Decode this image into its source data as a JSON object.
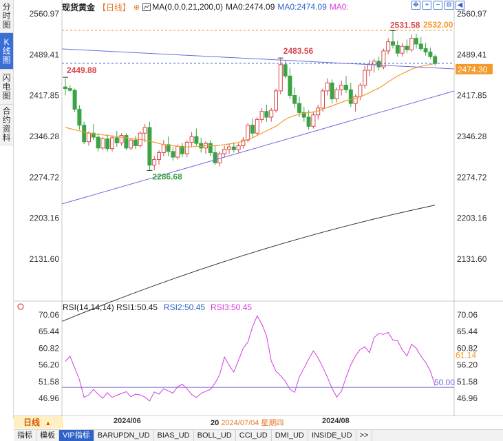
{
  "sidebar": {
    "tabs": [
      {
        "label": "分时图",
        "active": false
      },
      {
        "label": "K线图",
        "active": true
      },
      {
        "label": "闪电图",
        "active": false
      },
      {
        "label": "合约资料",
        "active": false
      }
    ]
  },
  "header": {
    "title": "现货黄金",
    "period_tag": "【日线】",
    "ma_icon": "chart-settings-icon",
    "ma_label": "MA(0,0,0,21,200,0)",
    "ma0_value_1": "MA0:2474.09",
    "ma0_value_2": "MA0:2474.09",
    "ma0_value_3": "MA0:"
  },
  "window_controls": [
    "expand-icon",
    "zoom-in-icon",
    "zoom-out-icon",
    "settings-icon",
    "scroll-left-icon"
  ],
  "rsi_header": {
    "label": "RSI(14,14,14)",
    "rsi1": "RSI1:50.45",
    "rsi2": "RSI2:50.45",
    "rsi3": "RSI3:50.45"
  },
  "bottom": {
    "period_label": "日线",
    "date_1": "2024/06",
    "date_2_prefix": "20",
    "date_selected": "2024/07/04 星期四",
    "date_3": "2024/08"
  },
  "tabbar": [
    "指标",
    "模板",
    "VIP指标",
    "BARUPDN_UD",
    "BIAS_UD",
    "BOLL_UD",
    "CCI_UD",
    "DMI_UD",
    "INSIDE_UD",
    ">>"
  ],
  "colors": {
    "up": "#d8454a",
    "down": "#3aa343",
    "ma21": "#f39a2a",
    "ma200": "#333333",
    "trendline": "#6b6bdc",
    "rsi": "#d33be0",
    "accent": "#2f62c7",
    "current_price": "#f39a2a"
  },
  "chart_data": [
    {
      "type": "candlestick",
      "title": "现货黄金",
      "period": "日线",
      "y_ticks": [
        "2560.97",
        "2489.41",
        "2417.85",
        "2346.28",
        "2274.72",
        "2203.16",
        "2131.60"
      ],
      "ylim": [
        2131.6,
        2560.97
      ],
      "x_ticks": [
        "2024/06",
        "2024/07/04",
        "2024/08"
      ],
      "annotations": {
        "high_1": "2449.88",
        "low_1": "2286.68",
        "high_2": "2483.56",
        "high_3": "2531.58",
        "last_high_marker": "2532.00",
        "current_price": "2474.30"
      },
      "price_levels": {
        "dashed_top": 2532.0,
        "dashed_current": 2474.3
      },
      "candles": [
        [
          2433,
          2448,
          2418,
          2430
        ],
        [
          2430,
          2436,
          2424,
          2427
        ],
        [
          2427,
          2430,
          2389,
          2394
        ],
        [
          2394,
          2401,
          2358,
          2366
        ],
        [
          2366,
          2372,
          2333,
          2337
        ],
        [
          2337,
          2355,
          2330,
          2352
        ],
        [
          2352,
          2368,
          2340,
          2345
        ],
        [
          2345,
          2352,
          2320,
          2326
        ],
        [
          2326,
          2345,
          2322,
          2342
        ],
        [
          2342,
          2350,
          2320,
          2325
        ],
        [
          2325,
          2348,
          2320,
          2344
        ],
        [
          2344,
          2356,
          2328,
          2335
        ],
        [
          2335,
          2352,
          2330,
          2348
        ],
        [
          2348,
          2352,
          2322,
          2326
        ],
        [
          2326,
          2344,
          2322,
          2340
        ],
        [
          2340,
          2347,
          2324,
          2330
        ],
        [
          2330,
          2355,
          2326,
          2352
        ],
        [
          2352,
          2368,
          2336,
          2362
        ],
        [
          2362,
          2372,
          2286,
          2296
        ],
        [
          2296,
          2312,
          2287,
          2306
        ],
        [
          2306,
          2322,
          2297,
          2318
        ],
        [
          2318,
          2340,
          2312,
          2332
        ],
        [
          2332,
          2346,
          2312,
          2320
        ],
        [
          2320,
          2328,
          2304,
          2310
        ],
        [
          2310,
          2332,
          2306,
          2329
        ],
        [
          2329,
          2335,
          2310,
          2316
        ],
        [
          2316,
          2340,
          2310,
          2336
        ],
        [
          2336,
          2354,
          2328,
          2346
        ],
        [
          2346,
          2360,
          2330,
          2334
        ],
        [
          2334,
          2344,
          2318,
          2326
        ],
        [
          2326,
          2338,
          2316,
          2334
        ],
        [
          2334,
          2340,
          2312,
          2318
        ],
        [
          2318,
          2330,
          2296,
          2300
        ],
        [
          2300,
          2320,
          2294,
          2316
        ],
        [
          2316,
          2330,
          2310,
          2324
        ],
        [
          2324,
          2334,
          2316,
          2328
        ],
        [
          2328,
          2336,
          2318,
          2323
        ],
        [
          2323,
          2334,
          2318,
          2330
        ],
        [
          2330,
          2345,
          2325,
          2340
        ],
        [
          2340,
          2370,
          2336,
          2366
        ],
        [
          2366,
          2378,
          2345,
          2352
        ],
        [
          2352,
          2380,
          2348,
          2376
        ],
        [
          2376,
          2396,
          2370,
          2390
        ],
        [
          2390,
          2402,
          2372,
          2380
        ],
        [
          2380,
          2396,
          2372,
          2392
        ],
        [
          2392,
          2430,
          2388,
          2426
        ],
        [
          2426,
          2484,
          2420,
          2472
        ],
        [
          2472,
          2478,
          2448,
          2452
        ],
        [
          2452,
          2466,
          2412,
          2418
        ],
        [
          2418,
          2432,
          2396,
          2404
        ],
        [
          2404,
          2416,
          2380,
          2388
        ],
        [
          2388,
          2398,
          2372,
          2380
        ],
        [
          2380,
          2392,
          2358,
          2364
        ],
        [
          2364,
          2390,
          2360,
          2384
        ],
        [
          2384,
          2402,
          2376,
          2396
        ],
        [
          2396,
          2430,
          2390,
          2426
        ],
        [
          2426,
          2448,
          2418,
          2440
        ],
        [
          2440,
          2446,
          2404,
          2412
        ],
        [
          2412,
          2432,
          2406,
          2428
        ],
        [
          2428,
          2444,
          2418,
          2436
        ],
        [
          2436,
          2452,
          2422,
          2428
        ],
        [
          2428,
          2440,
          2398,
          2404
        ],
        [
          2404,
          2420,
          2390,
          2416
        ],
        [
          2416,
          2440,
          2410,
          2436
        ],
        [
          2436,
          2470,
          2430,
          2462
        ],
        [
          2462,
          2480,
          2452,
          2472
        ],
        [
          2472,
          2482,
          2458,
          2478
        ],
        [
          2478,
          2486,
          2462,
          2468
        ],
        [
          2468,
          2500,
          2464,
          2496
        ],
        [
          2496,
          2518,
          2490,
          2512
        ],
        [
          2512,
          2532,
          2500,
          2506
        ],
        [
          2506,
          2514,
          2486,
          2492
        ],
        [
          2492,
          2510,
          2486,
          2504
        ],
        [
          2504,
          2516,
          2492,
          2498
        ],
        [
          2498,
          2524,
          2494,
          2518
        ],
        [
          2518,
          2526,
          2500,
          2508
        ],
        [
          2508,
          2520,
          2496,
          2500
        ],
        [
          2500,
          2510,
          2488,
          2494
        ],
        [
          2494,
          2502,
          2482,
          2486
        ],
        [
          2486,
          2490,
          2470,
          2474
        ]
      ],
      "ma21": [
        2362,
        2360,
        2358,
        2356,
        2354,
        2352,
        2351,
        2350,
        2349,
        2348,
        2347,
        2346,
        2345,
        2344,
        2343,
        2342,
        2341,
        2340,
        2338,
        2336,
        2334,
        2332,
        2331,
        2330,
        2329,
        2328,
        2328,
        2328,
        2329,
        2329,
        2330,
        2330,
        2330,
        2331,
        2332,
        2333,
        2334,
        2336,
        2338,
        2341,
        2344,
        2348,
        2352,
        2356,
        2360,
        2364,
        2370,
        2376,
        2380,
        2383,
        2385,
        2387,
        2388,
        2389,
        2391,
        2394,
        2397,
        2400,
        2403,
        2406,
        2409,
        2411,
        2413,
        2416,
        2419,
        2423,
        2427,
        2431,
        2436,
        2442,
        2447,
        2452,
        2456,
        2460,
        2464,
        2467,
        2469,
        2471,
        2472,
        2474
      ],
      "ma200": [
        2078,
        2208,
        2232
      ]
    },
    {
      "type": "line",
      "title": "RSI(14,14,14)",
      "y_ticks": [
        "70.06",
        "65.44",
        "60.82",
        "56.20",
        "51.58",
        "46.96"
      ],
      "ylim": [
        46.96,
        70.06
      ],
      "reference_line": 50.0,
      "right_labels": {
        "rsi": "61.14",
        "base": "50.00"
      },
      "series": [
        {
          "name": "RSI1",
          "values": [
            57.2,
            58.6,
            55.4,
            52.1,
            47.2,
            47.9,
            49.4,
            48.1,
            47.0,
            48.5,
            47.2,
            47.8,
            48.3,
            48.8,
            47.4,
            48.1,
            47.9,
            47.3,
            46.2,
            48.7,
            48.1,
            49.6,
            49.0,
            48.4,
            50.2,
            50.8,
            49.6,
            48.0,
            47.2,
            48.3,
            48.9,
            49.4,
            51.2,
            53.6,
            58.4,
            56.1,
            54.2,
            57.5,
            60.8,
            62.5,
            66.8,
            69.8,
            67.5,
            64.2,
            57.3,
            54.5,
            53.2,
            51.7,
            49.4,
            48.6,
            52.9,
            55.3,
            57.8,
            60.1,
            58.2,
            55.6,
            52.8,
            49.7,
            47.3,
            48.9,
            52.8,
            56.2,
            58.7,
            60.5,
            61.2,
            59.6,
            63.8,
            64.9,
            64.7,
            65.2,
            63.1,
            62.9,
            60.4,
            58.7,
            61.9,
            60.8,
            58.6,
            56.9,
            54.5,
            50.5
          ]
        }
      ]
    }
  ]
}
